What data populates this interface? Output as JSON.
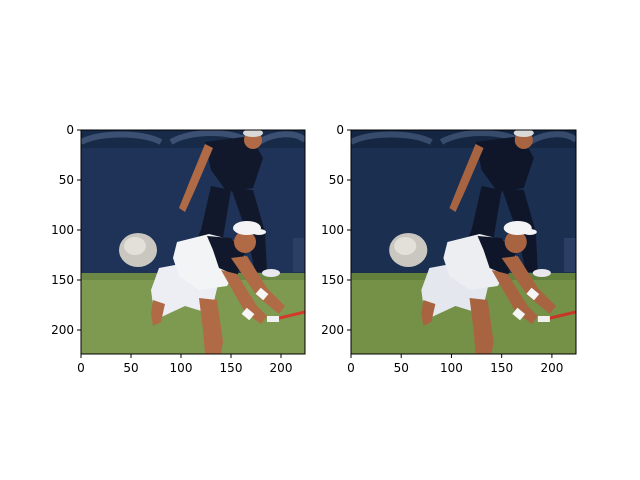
{
  "figure": {
    "panels": [
      {
        "image": {
          "subject": "tennis player lunging to hit a low forehand while a line judge crouches behind him",
          "colors": {
            "wall": "#1e3357",
            "wall_dark": "#172a48",
            "wall_text": "#3b5072",
            "court": "#7d9a50",
            "court_dark": "#5f7d3d",
            "shirt_white": "#f3f4f6",
            "shirt_navy": "#11182b",
            "skin": "#b06a45",
            "shorts": "#eceef4",
            "racket": "#d23a2a"
          }
        },
        "x_axis": {
          "range": [
            0,
            224
          ],
          "ticks": [
            "0",
            "50",
            "100",
            "150",
            "200"
          ]
        },
        "y_axis": {
          "range": [
            224,
            0
          ],
          "ticks": [
            "0",
            "50",
            "100",
            "150",
            "200"
          ]
        }
      },
      {
        "image": {
          "subject": "same tennis photograph, slightly darker",
          "colors": {
            "wall": "#1b2f51",
            "wall_dark": "#152642",
            "wall_text": "#374b6c",
            "court": "#759148",
            "court_dark": "#587437",
            "shirt_white": "#eceef2",
            "shirt_navy": "#10162a",
            "skin": "#a86441",
            "shorts": "#e4e7ee",
            "racket": "#c93526"
          }
        },
        "x_axis": {
          "range": [
            0,
            224
          ],
          "ticks": [
            "0",
            "50",
            "100",
            "150",
            "200"
          ]
        },
        "y_axis": {
          "range": [
            224,
            0
          ],
          "ticks": [
            "0",
            "50",
            "100",
            "150",
            "200"
          ]
        }
      }
    ]
  }
}
